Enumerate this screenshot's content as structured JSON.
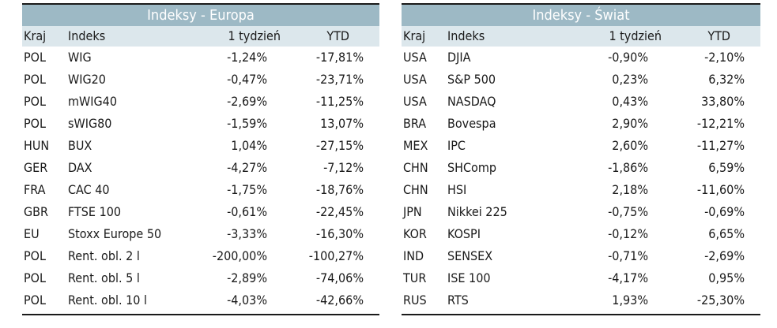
{
  "colors": {
    "title_bg": "#9db9c5",
    "header_bg": "#dce7ec",
    "rule": "#1a1a1a"
  },
  "left": {
    "title": "Indeksy - Europa",
    "headers": {
      "kraj": "Kraj",
      "indeks": "Indeks",
      "tydzien": "1 tydzień",
      "ytd": "YTD"
    },
    "rows": [
      {
        "kraj": "POL",
        "indeks": "WIG",
        "tydzien": "-1,24%",
        "ytd": "-17,81%"
      },
      {
        "kraj": "POL",
        "indeks": "WIG20",
        "tydzien": "-0,47%",
        "ytd": "-23,71%"
      },
      {
        "kraj": "POL",
        "indeks": "mWIG40",
        "tydzien": "-2,69%",
        "ytd": "-11,25%"
      },
      {
        "kraj": "POL",
        "indeks": "sWIG80",
        "tydzien": "-1,59%",
        "ytd": "13,07%"
      },
      {
        "kraj": "HUN",
        "indeks": "BUX",
        "tydzien": "1,04%",
        "ytd": "-27,15%"
      },
      {
        "kraj": "GER",
        "indeks": "DAX",
        "tydzien": "-4,27%",
        "ytd": "-7,12%"
      },
      {
        "kraj": "FRA",
        "indeks": "CAC 40",
        "tydzien": "-1,75%",
        "ytd": "-18,76%"
      },
      {
        "kraj": "GBR",
        "indeks": "FTSE 100",
        "tydzien": "-0,61%",
        "ytd": "-22,45%"
      },
      {
        "kraj": "EU",
        "indeks": "Stoxx Europe 50",
        "tydzien": "-3,33%",
        "ytd": "-16,30%"
      },
      {
        "kraj": "POL",
        "indeks": "Rent. obl. 2 l",
        "tydzien": "-200,00%",
        "ytd": "-100,27%"
      },
      {
        "kraj": "POL",
        "indeks": "Rent. obl. 5 l",
        "tydzien": "-2,89%",
        "ytd": "-74,06%"
      },
      {
        "kraj": "POL",
        "indeks": "Rent. obl. 10 l",
        "tydzien": "-4,03%",
        "ytd": "-42,66%"
      }
    ]
  },
  "right": {
    "title": "Indeksy - Świat",
    "headers": {
      "kraj": "Kraj",
      "indeks": "Indeks",
      "tydzien": "1 tydzień",
      "ytd": "YTD"
    },
    "rows": [
      {
        "kraj": "USA",
        "indeks": "DJIA",
        "tydzien": "-0,90%",
        "ytd": "-2,10%"
      },
      {
        "kraj": "USA",
        "indeks": "S&P 500",
        "tydzien": "0,23%",
        "ytd": "6,32%"
      },
      {
        "kraj": "USA",
        "indeks": "NASDAQ",
        "tydzien": "0,43%",
        "ytd": "33,80%"
      },
      {
        "kraj": "BRA",
        "indeks": "Bovespa",
        "tydzien": "2,90%",
        "ytd": "-12,21%"
      },
      {
        "kraj": "MEX",
        "indeks": "IPC",
        "tydzien": "2,60%",
        "ytd": "-11,27%"
      },
      {
        "kraj": "CHN",
        "indeks": "SHComp",
        "tydzien": "-1,86%",
        "ytd": "6,59%"
      },
      {
        "kraj": "CHN",
        "indeks": "HSI",
        "tydzien": "2,18%",
        "ytd": "-11,60%"
      },
      {
        "kraj": "JPN",
        "indeks": "Nikkei 225",
        "tydzien": "-0,75%",
        "ytd": "-0,69%"
      },
      {
        "kraj": "KOR",
        "indeks": "KOSPI",
        "tydzien": "-0,12%",
        "ytd": "6,65%"
      },
      {
        "kraj": "IND",
        "indeks": "SENSEX",
        "tydzien": "-0,71%",
        "ytd": "-2,69%"
      },
      {
        "kraj": "TUR",
        "indeks": "ISE 100",
        "tydzien": "-4,17%",
        "ytd": "0,95%"
      },
      {
        "kraj": "RUS",
        "indeks": "RTS",
        "tydzien": "1,93%",
        "ytd": "-25,30%"
      }
    ]
  }
}
